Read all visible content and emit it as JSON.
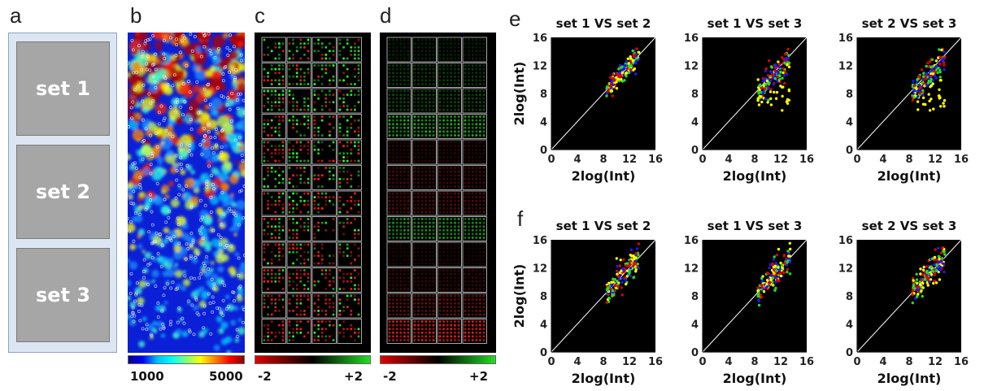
{
  "panels": {
    "a": "a",
    "b": "b",
    "c": "c",
    "d": "d",
    "e": "e",
    "f": "f"
  },
  "sets": [
    "set 1",
    "set 2",
    "set 3"
  ],
  "colorbars": {
    "b": {
      "min_label": "1000",
      "max_label": "5000",
      "min": 1000,
      "max": 5000
    },
    "c": {
      "min_label": "-2",
      "max_label": "+2",
      "min": -2,
      "max": 2
    },
    "d": {
      "min_label": "-2",
      "max_label": "+2",
      "min": -2,
      "max": 2
    }
  },
  "colors": {
    "red": "#e00000",
    "green": "#22dd22",
    "blue": "#1a1aff",
    "yellow": "#ffff00",
    "plot_bg": "#000000",
    "set_box": "#a6a6a6",
    "frame": "#dce6f2"
  },
  "chart_data": [
    {
      "type": "scatter",
      "panel": "e",
      "title": "set 1 VS set 2",
      "xlabel": "2log(Int)",
      "ylabel": "2log(Int)",
      "xlim": [
        0,
        16
      ],
      "ylim": [
        0,
        16
      ],
      "xticks": [
        "0",
        "4",
        "8",
        "12",
        "16"
      ],
      "yticks": [
        "0",
        "4",
        "8",
        "12",
        "16"
      ],
      "diagonal": true,
      "pattern": "tight"
    },
    {
      "type": "scatter",
      "panel": "e",
      "title": "set 1 VS set 3",
      "xlabel": "2log(Int)",
      "ylabel": "",
      "xlim": [
        0,
        16
      ],
      "ylim": [
        0,
        16
      ],
      "xticks": [
        "0",
        "4",
        "8",
        "12",
        "16"
      ],
      "yticks": [
        "0",
        "4",
        "8",
        "12",
        "16"
      ],
      "diagonal": true,
      "pattern": "below"
    },
    {
      "type": "scatter",
      "panel": "e",
      "title": "set 2 VS set 3",
      "xlabel": "2log(Int)",
      "ylabel": "",
      "xlim": [
        0,
        16
      ],
      "ylim": [
        0,
        16
      ],
      "xticks": [
        "0",
        "4",
        "8",
        "12",
        "16"
      ],
      "yticks": [
        "0",
        "4",
        "8",
        "12",
        "16"
      ],
      "diagonal": true,
      "pattern": "below"
    },
    {
      "type": "scatter",
      "panel": "f",
      "title": "set 1 VS set 2",
      "xlabel": "2log(Int)",
      "ylabel": "2log(Int)",
      "xlim": [
        0,
        16
      ],
      "ylim": [
        0,
        16
      ],
      "xticks": [
        "0",
        "4",
        "8",
        "12",
        "16"
      ],
      "yticks": [
        "0",
        "4",
        "8",
        "12",
        "16"
      ],
      "diagonal": true,
      "pattern": "normal"
    },
    {
      "type": "scatter",
      "panel": "f",
      "title": "set 1 VS set 3",
      "xlabel": "2log(Int)",
      "ylabel": "",
      "xlim": [
        0,
        16
      ],
      "ylim": [
        0,
        16
      ],
      "xticks": [
        "0",
        "4",
        "8",
        "12",
        "16"
      ],
      "yticks": [
        "0",
        "4",
        "8",
        "12",
        "16"
      ],
      "diagonal": true,
      "pattern": "normal"
    },
    {
      "type": "scatter",
      "panel": "f",
      "title": "set 2 VS set 3",
      "xlabel": "2log(Int)",
      "ylabel": "",
      "xlim": [
        0,
        16
      ],
      "ylim": [
        0,
        16
      ],
      "xticks": [
        "0",
        "4",
        "8",
        "12",
        "16"
      ],
      "yticks": [
        "0",
        "4",
        "8",
        "12",
        "16"
      ],
      "diagonal": true,
      "pattern": "normal"
    }
  ]
}
